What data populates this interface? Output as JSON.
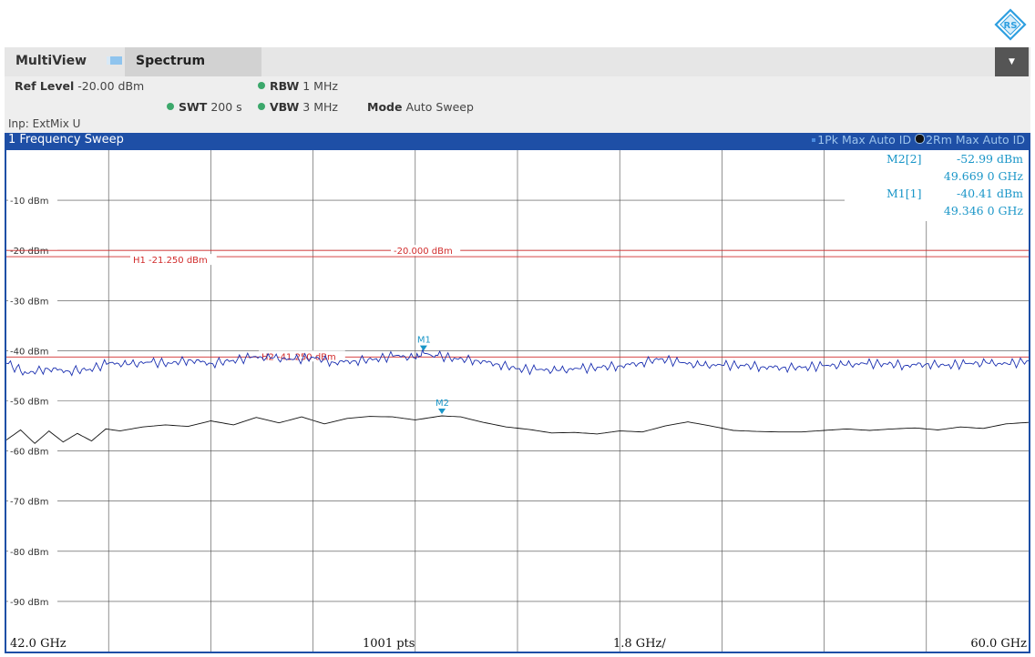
{
  "header": {
    "multiview_label": "MultiView",
    "active_tab_label": "Spectrum",
    "logo_text": "RS"
  },
  "settings": {
    "ref_level_label": "Ref Level",
    "ref_level_value": "-20.00 dBm",
    "rbw_label": "RBW",
    "rbw_value": "1 MHz",
    "swt_label": "SWT",
    "swt_value": "200 s",
    "vbw_label": "VBW",
    "vbw_value": "3 MHz",
    "mode_label": "Mode",
    "mode_value": "Auto Sweep",
    "input_text": "Inp: ExtMix U"
  },
  "window": {
    "title": "1 Frequency Sweep",
    "trace1_legend": "1Pk Max Auto ID",
    "trace2_legend": "2Rm Max Auto ID"
  },
  "markers": [
    {
      "name": "M2[2]",
      "level": "-52.99 dBm",
      "freq": "49.669 0 GHz"
    },
    {
      "name": "M1[1]",
      "level": "-40.41 dBm",
      "freq": "49.346 0 GHz"
    }
  ],
  "footer": {
    "start": "42.0 GHz",
    "points": "1001 pts",
    "span": "1.8 GHz/",
    "stop": "60.0 GHz"
  },
  "colors": {
    "accent": "#1e4fa6",
    "trace1": "#1a2fb0",
    "trace2": "#111111",
    "limit_lines": "#d12b2b",
    "marker": "#1a96c8",
    "status_dot": "#3ca86b"
  },
  "chart_data": {
    "type": "line",
    "xlim": [
      42.0,
      60.0
    ],
    "ylim": [
      -100,
      0
    ],
    "x_unit": "GHz",
    "y_unit": "dBm",
    "y_ticks": [
      "-10 dBm",
      "-20 dBm",
      "-30 dBm",
      "-40 dBm",
      "-50 dBm",
      "-60 dBm",
      "-70 dBm",
      "-80 dBm",
      "-90 dBm"
    ],
    "y_tick_values": [
      -10,
      -20,
      -30,
      -40,
      -50,
      -60,
      -70,
      -80,
      -90
    ],
    "grid": true,
    "series": [
      {
        "name": "1Pk Max",
        "x": [
          42.0,
          42.36,
          42.72,
          43.08,
          43.44,
          43.8,
          44.16,
          44.52,
          44.88,
          45.24,
          45.6,
          45.96,
          46.32,
          46.68,
          47.04,
          47.4,
          47.76,
          48.12,
          48.48,
          48.84,
          49.2,
          49.346,
          49.56,
          49.92,
          50.28,
          50.64,
          51.0,
          51.36,
          51.72,
          52.08,
          52.44,
          52.8,
          53.16,
          53.52,
          53.88,
          54.24,
          54.6,
          54.96,
          55.32,
          55.68,
          56.04,
          56.4,
          56.76,
          57.12,
          57.48,
          57.84,
          58.2,
          58.56,
          58.92,
          59.28,
          59.64,
          60.0
        ],
        "y": [
          -42.5,
          -44.5,
          -43.5,
          -44.0,
          -43.8,
          -42.5,
          -42.8,
          -42.3,
          -42.5,
          -41.8,
          -42.5,
          -42.0,
          -41.3,
          -41.5,
          -41.8,
          -41.3,
          -42.3,
          -42.0,
          -41.7,
          -41.0,
          -41.5,
          -40.41,
          -40.9,
          -41.6,
          -41.9,
          -42.6,
          -43.6,
          -43.8,
          -44.0,
          -43.6,
          -43.3,
          -43.0,
          -42.4,
          -41.6,
          -42.4,
          -43.0,
          -42.9,
          -42.9,
          -43.2,
          -43.3,
          -43.3,
          -43.0,
          -42.9,
          -42.6,
          -42.6,
          -42.9,
          -42.6,
          -42.9,
          -42.6,
          -42.5,
          -42.7,
          -42.0
        ]
      },
      {
        "name": "2Rm Max",
        "x": [
          42.0,
          42.25,
          42.5,
          42.75,
          43.0,
          43.25,
          43.5,
          43.75,
          44.0,
          44.4,
          44.8,
          45.2,
          45.6,
          46.0,
          46.4,
          46.8,
          47.2,
          47.6,
          48.0,
          48.4,
          48.8,
          49.2,
          49.669,
          50.0,
          50.4,
          50.8,
          51.2,
          51.6,
          52.0,
          52.4,
          52.8,
          53.2,
          53.6,
          54.0,
          54.4,
          54.8,
          55.2,
          55.6,
          56.0,
          56.4,
          56.8,
          57.2,
          57.6,
          58.0,
          58.4,
          58.8,
          59.2,
          59.6,
          60.0
        ],
        "y": [
          -57.8,
          -55.8,
          -58.5,
          -56.0,
          -58.2,
          -56.5,
          -58.0,
          -55.6,
          -56.0,
          -55.2,
          -54.8,
          -55.1,
          -54.0,
          -54.8,
          -53.3,
          -54.4,
          -53.2,
          -54.6,
          -53.5,
          -53.1,
          -53.2,
          -53.8,
          -52.99,
          -53.2,
          -54.3,
          -55.2,
          -55.7,
          -56.4,
          -56.3,
          -56.6,
          -56.0,
          -56.2,
          -55.0,
          -54.2,
          -55.0,
          -55.9,
          -56.1,
          -56.2,
          -56.2,
          -55.9,
          -55.6,
          -55.9,
          -55.6,
          -55.4,
          -55.8,
          -55.2,
          -55.5,
          -54.6,
          -54.3
        ]
      }
    ],
    "horizontal_lines": [
      {
        "label": "H1 -21.250 dBm",
        "value": -21.25
      },
      {
        "label": "-20.000 dBm",
        "value": -20.0
      },
      {
        "label": "H2 -41.250 dBm",
        "value": -41.25
      }
    ],
    "marker_points": [
      {
        "label": "M1",
        "x": 49.346,
        "y": -40.41
      },
      {
        "label": "M2",
        "x": 49.669,
        "y": -52.99
      }
    ]
  }
}
